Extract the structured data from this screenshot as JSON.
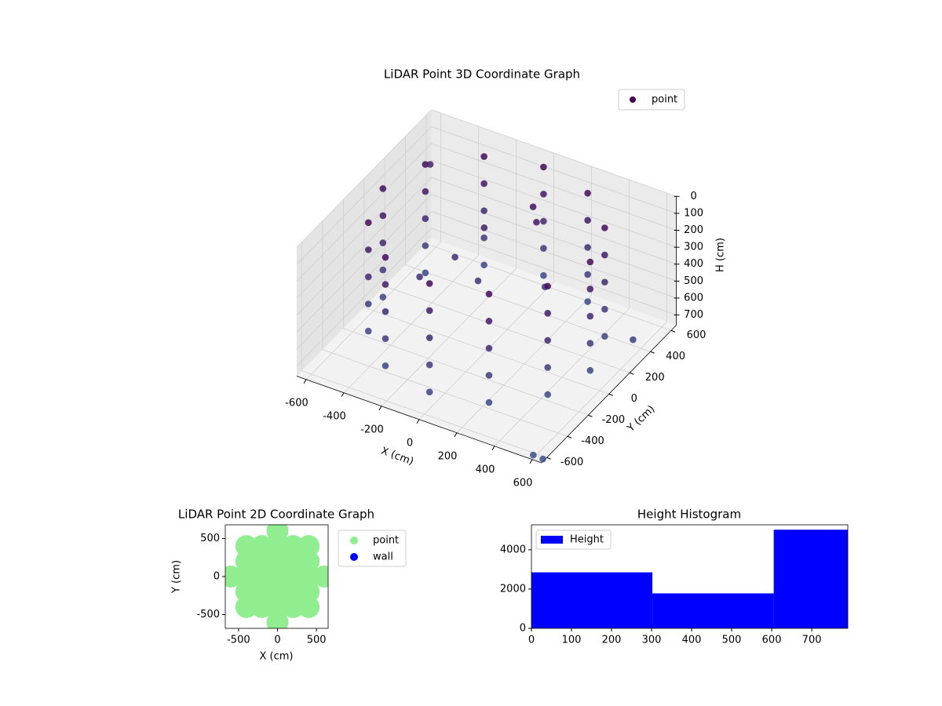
{
  "chart_data": [
    {
      "type": "scatter3d",
      "title": "LiDAR Point 3D Coordinate Graph",
      "xlabel": "X (cm)",
      "ylabel": "Y (cm)",
      "zlabel": "H (cm)",
      "series": [
        {
          "name": "point",
          "color": "#440154",
          "x": [
            0,
            0,
            0,
            0,
            0,
            275,
            275,
            275,
            275,
            275,
            -275,
            -275,
            -275,
            -275,
            -275,
            476,
            476,
            476,
            476,
            476,
            -476,
            -476,
            -476,
            -476,
            -476,
            550,
            550,
            550,
            550,
            550,
            -550,
            -550,
            -550,
            -550,
            -550,
            100,
            60,
            -150,
            -250,
            -100,
            200,
            -300,
            476,
            476,
            476,
            476,
            476,
            -476,
            -476,
            -476,
            -476,
            -476,
            275,
            275,
            275,
            275,
            275,
            -275,
            -275,
            -275,
            -275,
            -275,
            0,
            0,
            0,
            0,
            0,
            -640,
            640,
            600,
            640
          ],
          "y": [
            550,
            550,
            550,
            550,
            550,
            476,
            476,
            476,
            476,
            476,
            476,
            476,
            476,
            476,
            476,
            275,
            275,
            275,
            275,
            275,
            275,
            275,
            275,
            275,
            275,
            0,
            0,
            0,
            0,
            0,
            0,
            0,
            0,
            0,
            0,
            300,
            340,
            250,
            150,
            100,
            200,
            -100,
            -275,
            -275,
            -275,
            -275,
            -275,
            -275,
            -275,
            -275,
            -275,
            -275,
            -476,
            -476,
            -476,
            -476,
            -476,
            -476,
            -476,
            -476,
            -476,
            -476,
            -550,
            -550,
            -550,
            -550,
            -550,
            620,
            250,
            -640,
            -620
          ],
          "h": [
            20,
            180,
            340,
            500,
            660,
            20,
            180,
            340,
            500,
            660,
            20,
            180,
            340,
            500,
            660,
            20,
            180,
            340,
            500,
            660,
            20,
            180,
            340,
            500,
            660,
            20,
            180,
            340,
            500,
            660,
            20,
            180,
            340,
            500,
            660,
            150,
            100,
            250,
            400,
            450,
            430,
            380,
            20,
            180,
            340,
            500,
            660,
            20,
            180,
            340,
            500,
            660,
            20,
            180,
            340,
            500,
            660,
            20,
            180,
            340,
            500,
            660,
            20,
            180,
            340,
            500,
            660,
            300,
            600,
            740,
            760
          ]
        }
      ],
      "xlim": [
        -650,
        650
      ],
      "xticks": [
        -600,
        -400,
        -200,
        0,
        200,
        400,
        600
      ],
      "ylim": [
        -650,
        650
      ],
      "yticks": [
        -600,
        -400,
        -200,
        0,
        200,
        400,
        600
      ],
      "zlim": [
        0,
        760
      ],
      "zticks": [
        0,
        100,
        200,
        300,
        400,
        500,
        600,
        700
      ],
      "z_inverted": true,
      "legend": "upper right",
      "grid": true
    },
    {
      "type": "scatter",
      "title": "LiDAR Point 2D Coordinate Graph",
      "xlabel": "X (cm)",
      "ylabel": "Y (cm)",
      "series": [
        {
          "name": "point",
          "color": "#90ee90",
          "x": [
            0,
            -600,
            -400,
            -200,
            0,
            200,
            400,
            600,
            -400,
            -200,
            0,
            200,
            400,
            -400,
            -200,
            0,
            200,
            400,
            -400,
            -200,
            0,
            200,
            400,
            -400,
            -200,
            0,
            200,
            400,
            0
          ],
          "y": [
            600,
            0,
            0,
            0,
            0,
            0,
            0,
            0,
            200,
            200,
            200,
            200,
            200,
            -200,
            -200,
            -200,
            -200,
            -200,
            400,
            400,
            400,
            400,
            400,
            -400,
            -400,
            -400,
            -400,
            -400,
            -600
          ]
        },
        {
          "name": "wall",
          "color": "#0000ff",
          "x": [],
          "y": []
        }
      ],
      "xlim": [
        -670,
        650
      ],
      "xticks": [
        -500,
        0,
        500
      ],
      "ylim": [
        -680,
        680
      ],
      "yticks": [
        -500,
        0,
        500
      ],
      "legend": "outside right"
    },
    {
      "type": "histogram",
      "title": "Height Histogram",
      "bins": [
        0,
        302,
        605,
        790
      ],
      "series": [
        {
          "name": "Height",
          "color": "#0000ff",
          "values": [
            2850,
            1780,
            5020
          ]
        }
      ],
      "xlim": [
        0,
        790
      ],
      "xticks": [
        0,
        100,
        200,
        300,
        400,
        500,
        600,
        700
      ],
      "ylim": [
        0,
        5270
      ],
      "yticks": [
        0,
        2000,
        4000
      ],
      "legend": "upper left"
    }
  ]
}
